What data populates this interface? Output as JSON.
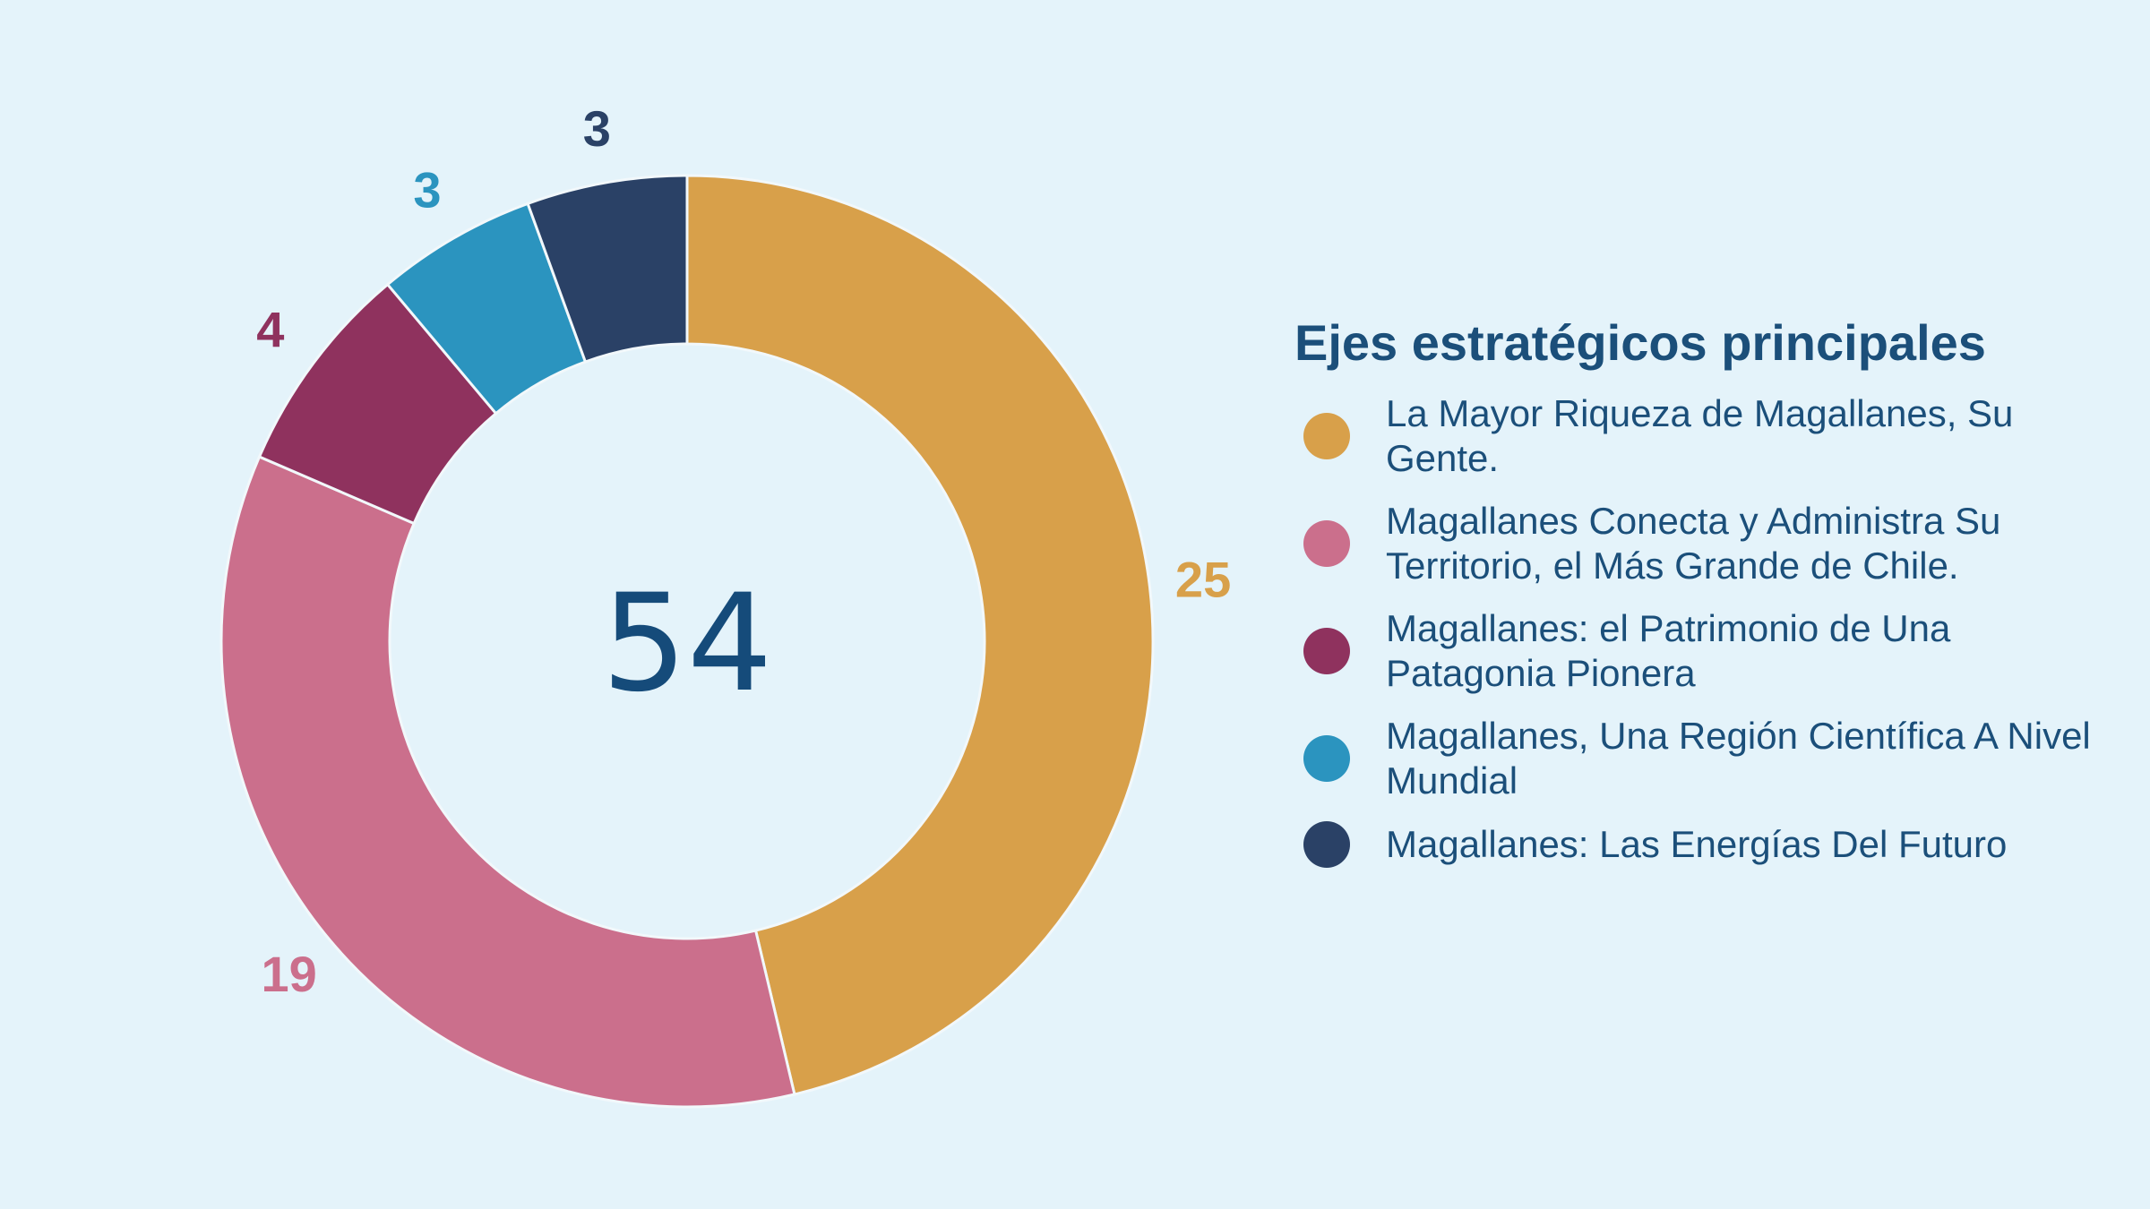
{
  "chart_data": {
    "type": "pie",
    "variant": "donut",
    "total": 54,
    "total_label": "54",
    "slices": [
      {
        "name": "La Mayor Riqueza de Magallanes, Su Gente.",
        "value": 25,
        "label": "25",
        "color": "#d8a04a"
      },
      {
        "name": "Magallanes Conecta y Administra Su Territorio, el Más Grande de Chile.",
        "value": 19,
        "label": "19",
        "color": "#cb6f8c"
      },
      {
        "name": "Magallanes: el Patrimonio de Una Patagonia Pionera",
        "value": 4,
        "label": "4",
        "color": "#8f325e"
      },
      {
        "name": "Magallanes, Una Región Científica A Nivel Mundial",
        "value": 3,
        "label": "3",
        "color": "#2b94bf"
      },
      {
        "name": "Magallanes: Las Energías Del Futuro",
        "value": 3,
        "label": "3",
        "color": "#2a4166"
      }
    ],
    "legend_title": "Ejes estratégicos principales",
    "legend_position": "right"
  },
  "colors": {
    "background": "#e4f3fa",
    "text": "#1b4f7a",
    "center_text": "#154b7a",
    "slice_border": "#f2f8fb"
  }
}
